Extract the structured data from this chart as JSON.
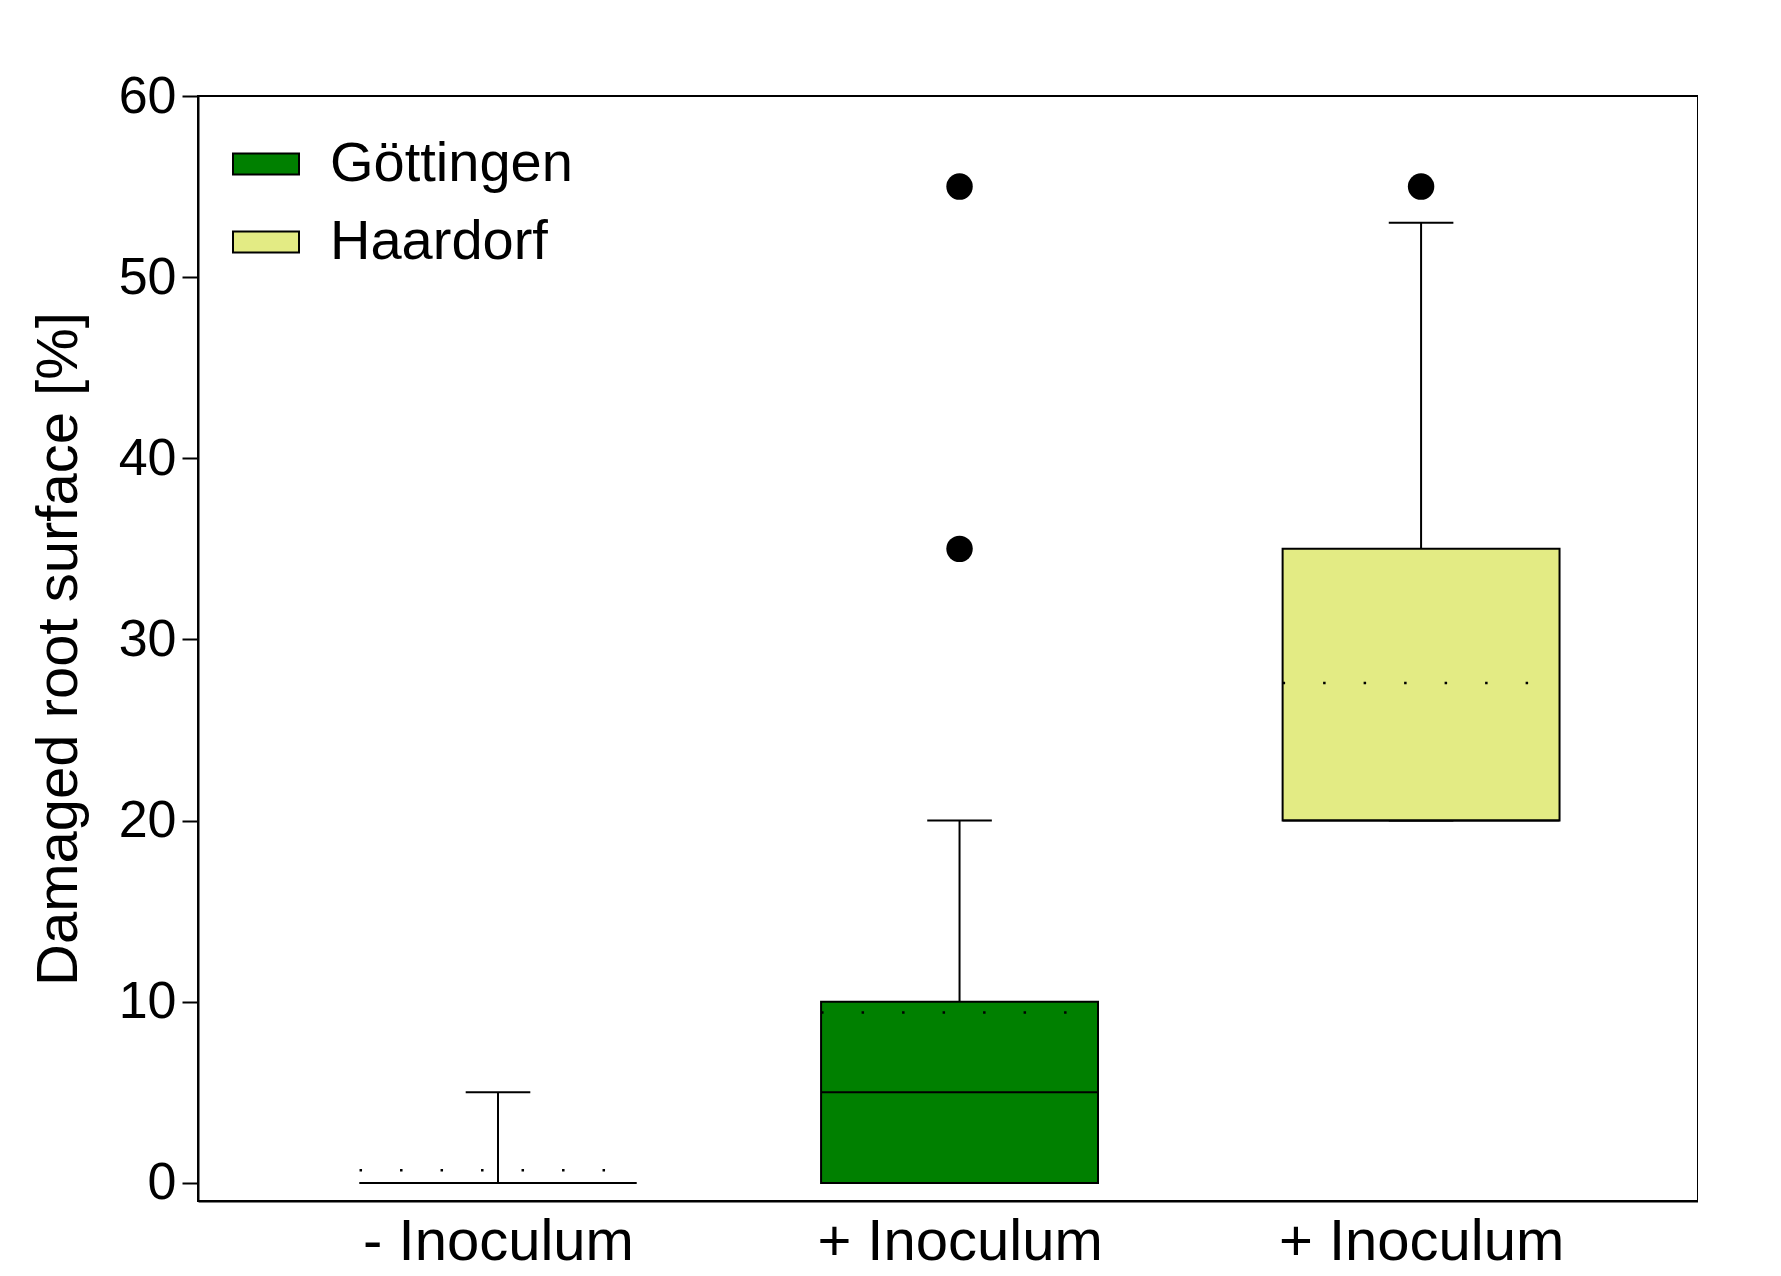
{
  "chart_data": {
    "type": "box",
    "ylabel": "Damaged root surface [%]",
    "categories": [
      "- Inoculum",
      "+ Inoculum",
      "+ Inoculum"
    ],
    "series": [
      {
        "color": "#000000",
        "boxes": [
          {
            "low": 0,
            "q1": 0,
            "median": 0,
            "q3": 0,
            "high": 5,
            "mean": 0.7
          },
          null,
          null
        ]
      },
      {
        "name": "Göttingen",
        "color": "#008000",
        "boxes": [
          null,
          {
            "low": 0,
            "q1": 0,
            "median": 5,
            "q3": 10,
            "high": 20,
            "mean": 9.4,
            "outliers": [
              35,
              55
            ]
          },
          null
        ]
      },
      {
        "name": "Haardorf",
        "color": "#e3eb84",
        "boxes": [
          null,
          null,
          {
            "low": 20,
            "q1": 20,
            "median": 20,
            "q3": 35,
            "high": 53,
            "mean": 27.6,
            "outliers": [
              55
            ]
          }
        ]
      }
    ],
    "ylim": [
      -1,
      60
    ],
    "yticks": [
      0,
      10,
      20,
      30,
      40,
      50,
      60
    ],
    "grid": false,
    "legend": "top left"
  }
}
